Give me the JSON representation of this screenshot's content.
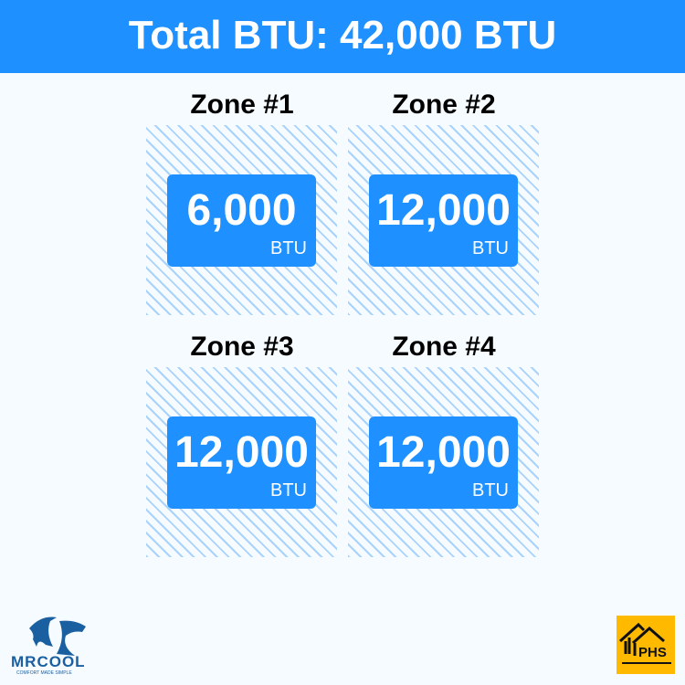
{
  "header": {
    "title": "Total BTU: 42,000 BTU"
  },
  "zones": [
    {
      "title": "Zone #1",
      "value": "6,000",
      "unit": "BTU"
    },
    {
      "title": "Zone #2",
      "value": "12,000",
      "unit": "BTU"
    },
    {
      "title": "Zone #3",
      "value": "12,000",
      "unit": "BTU"
    },
    {
      "title": "Zone #4",
      "value": "12,000",
      "unit": "BTU"
    }
  ],
  "logos": {
    "left": {
      "name": "MRCOOL",
      "tagline": "COMFORT MADE SIMPLE"
    },
    "right": {
      "name": "PHS"
    }
  },
  "colors": {
    "accent": "#1e90ff",
    "hatch": "#a9d3fb",
    "phs": "#ffba00",
    "mrcool": "#1a5fa0"
  }
}
